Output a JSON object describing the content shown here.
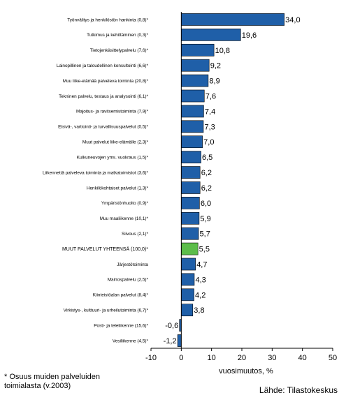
{
  "chart_data": {
    "type": "bar",
    "orientation": "horizontal",
    "categories": [
      "Työnvälitys ja henkilöstön hankinta (0,8)*",
      "Tutkimus ja kehittäminen (0,3)*",
      "Tietojenkäsittelypalvelu (7,6)*",
      "Lainopillinen ja taloudellinen konsultointi (6,6)*",
      "Muu liike-elämää palveleva toiminta (20,8)*",
      "Tekninen palvelu, testaus ja analysointi (6,1)*",
      "Majoitus- ja ravitsemistoiminta (7,9)*",
      "Etsivä-, vartiointi- ja turvallisuuspalvelut (0,5)*",
      "Muut palvelut liike-elämälle (2,3)*",
      "Kulkuneuvojen yms. vuokraus (1,5)*",
      "Liikennettä palveleva toiminta ja matkatoimistot (3,6)*",
      "Henkilökohtaiset palvelut (1,3)*",
      "Ympäristönhuolto (0,9)*",
      "Muu maaliikenne (10,1)*",
      "Siivous (2,1)*",
      "MUUT PALVELUT YHTEENSÄ (100,0)*",
      "Järjestötoiminta",
      "Mainospalvelu (2,5)*",
      "Kiinteistöalan palvelut (8,4)*",
      "Virkistys-, kulttuuri- ja urheilutoiminta (6,7)*",
      "Posti- ja teleliikenne (15,6)*",
      "Vesiliikenne (4,5)*"
    ],
    "values": [
      34.0,
      19.6,
      10.8,
      9.2,
      8.9,
      7.6,
      7.4,
      7.3,
      7.0,
      6.5,
      6.2,
      6.2,
      6.0,
      5.9,
      5.7,
      5.5,
      4.7,
      4.3,
      4.2,
      3.8,
      -0.6,
      -1.2
    ],
    "value_labels": [
      "34,0",
      "19,6",
      "10,8",
      "9,2",
      "8,9",
      "7,6",
      "7,4",
      "7,3",
      "7,0",
      "6,5",
      "6,2",
      "6,2",
      "6,0",
      "5,9",
      "5,7",
      "5,5",
      "4,7",
      "4,3",
      "4,2",
      "3,8",
      "-0,6",
      "-1,2"
    ],
    "highlight_category": "MUUT PALVELUT YHTEENSÄ (100,0)*",
    "xlabel": "vuosimuutos, %",
    "xlim": [
      -10,
      50
    ],
    "xticks": [
      -10,
      0,
      10,
      20,
      30,
      40,
      50
    ],
    "grid": false,
    "colors": {
      "bar": "#1f5fa8",
      "highlight": "#5cbd4a",
      "bar_edge": "#000000"
    }
  },
  "footnote": "* Osuus muiden palveluiden\ntoimialasta (v.2003)",
  "source": "Lähde: Tilastokeskus"
}
